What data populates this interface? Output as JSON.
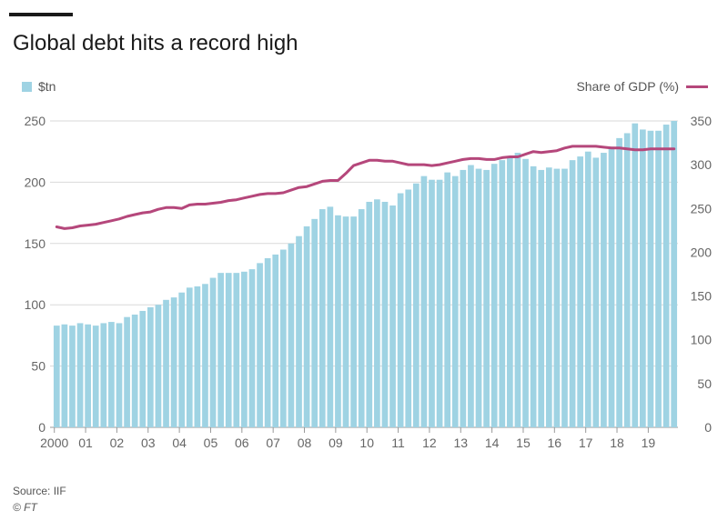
{
  "header": {
    "title": "Global debt hits a record high"
  },
  "legend": {
    "left_label": "$tn",
    "right_label": "Share of GDP (%)"
  },
  "footer": {
    "source": "Source: IIF",
    "copyright": "© FT"
  },
  "colors": {
    "bar": "#9fd3e3",
    "line": "#b5477b",
    "grid": "#d9d9d9",
    "axis": "#666666"
  },
  "chart_data": {
    "type": "bar",
    "title": "Global debt hits a record high",
    "xlabel": "",
    "ylabel": "",
    "x_tick_labels": [
      "2000",
      "01",
      "02",
      "03",
      "04",
      "05",
      "06",
      "07",
      "08",
      "09",
      "10",
      "11",
      "12",
      "13",
      "14",
      "15",
      "16",
      "17",
      "18",
      "19"
    ],
    "y_left": {
      "ylim": [
        0,
        250
      ],
      "ticks": [
        0,
        50,
        100,
        150,
        200,
        250
      ]
    },
    "y_right": {
      "ylim": [
        0,
        350
      ],
      "ticks": [
        0,
        50,
        100,
        150,
        200,
        250,
        300,
        350
      ]
    },
    "grid": true,
    "legend_placement": "top",
    "x_quarters": [
      "2000 Q1",
      "2000 Q2",
      "2000 Q3",
      "2000 Q4",
      "2001 Q1",
      "2001 Q2",
      "2001 Q3",
      "2001 Q4",
      "2002 Q1",
      "2002 Q2",
      "2002 Q3",
      "2002 Q4",
      "2003 Q1",
      "2003 Q2",
      "2003 Q3",
      "2003 Q4",
      "2004 Q1",
      "2004 Q2",
      "2004 Q3",
      "2004 Q4",
      "2005 Q1",
      "2005 Q2",
      "2005 Q3",
      "2005 Q4",
      "2006 Q1",
      "2006 Q2",
      "2006 Q3",
      "2006 Q4",
      "2007 Q1",
      "2007 Q2",
      "2007 Q3",
      "2007 Q4",
      "2008 Q1",
      "2008 Q2",
      "2008 Q3",
      "2008 Q4",
      "2009 Q1",
      "2009 Q2",
      "2009 Q3",
      "2009 Q4",
      "2010 Q1",
      "2010 Q2",
      "2010 Q3",
      "2010 Q4",
      "2011 Q1",
      "2011 Q2",
      "2011 Q3",
      "2011 Q4",
      "2012 Q1",
      "2012 Q2",
      "2012 Q3",
      "2012 Q4",
      "2013 Q1",
      "2013 Q2",
      "2013 Q3",
      "2013 Q4",
      "2014 Q1",
      "2014 Q2",
      "2014 Q3",
      "2014 Q4",
      "2015 Q1",
      "2015 Q2",
      "2015 Q3",
      "2015 Q4",
      "2016 Q1",
      "2016 Q2",
      "2016 Q3",
      "2016 Q4",
      "2017 Q1",
      "2017 Q2",
      "2017 Q3",
      "2017 Q4",
      "2018 Q1",
      "2018 Q2",
      "2018 Q3",
      "2018 Q4",
      "2019 Q1",
      "2019 Q2",
      "2019 Q3",
      "2019 Q4"
    ],
    "series": [
      {
        "name": "$tn",
        "type": "bar",
        "axis": "left",
        "values": [
          83,
          84,
          83,
          85,
          84,
          83,
          85,
          86,
          85,
          90,
          92,
          95,
          98,
          100,
          104,
          106,
          110,
          114,
          115,
          117,
          122,
          126,
          126,
          126,
          127,
          129,
          134,
          138,
          141,
          145,
          150,
          156,
          164,
          170,
          178,
          180,
          173,
          172,
          172,
          178,
          184,
          186,
          184,
          181,
          191,
          194,
          199,
          205,
          202,
          202,
          208,
          205,
          210,
          214,
          211,
          210,
          215,
          218,
          221,
          224,
          219,
          213,
          210,
          212,
          211,
          211,
          218,
          221,
          225,
          220,
          224,
          229,
          236,
          240,
          248,
          243,
          242,
          242,
          247,
          250
        ]
      },
      {
        "name": "Share of GDP (%)",
        "type": "line",
        "axis": "right",
        "values": [
          229,
          227,
          228,
          230,
          231,
          232,
          234,
          236,
          238,
          241,
          243,
          245,
          246,
          249,
          251,
          251,
          250,
          254,
          255,
          255,
          256,
          257,
          259,
          260,
          262,
          264,
          266,
          267,
          267,
          268,
          271,
          274,
          275,
          278,
          281,
          282,
          282,
          290,
          299,
          302,
          305,
          305,
          304,
          304,
          302,
          300,
          300,
          300,
          299,
          300,
          302,
          304,
          306,
          307,
          307,
          306,
          306,
          308,
          309,
          309,
          312,
          315,
          314,
          315,
          316,
          319,
          321,
          321,
          321,
          321,
          320,
          319,
          319,
          318,
          317,
          317,
          318,
          318,
          318,
          318
        ]
      }
    ]
  }
}
